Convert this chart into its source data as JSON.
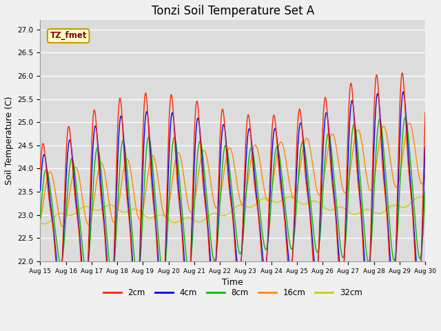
{
  "title": "Tonzi Soil Temperature Set A",
  "xlabel": "Time",
  "ylabel": "Soil Temperature (C)",
  "ylim": [
    22.0,
    27.2
  ],
  "annotation": "TZ_fmet",
  "x_tick_labels": [
    "Aug 15",
    "Aug 16",
    "Aug 17",
    "Aug 18",
    "Aug 19",
    "Aug 20",
    "Aug 21",
    "Aug 22",
    "Aug 23",
    "Aug 24",
    "Aug 25",
    "Aug 26",
    "Aug 27",
    "Aug 28",
    "Aug 29",
    "Aug 30"
  ],
  "colors": {
    "2cm": "#ff2200",
    "4cm": "#0000ee",
    "8cm": "#00bb00",
    "16cm": "#ff8800",
    "32cm": "#cccc00"
  },
  "yticks": [
    22.0,
    22.5,
    23.0,
    23.5,
    24.0,
    24.5,
    25.0,
    25.5,
    26.0,
    26.5,
    27.0
  ],
  "n_days": 15,
  "n_per_day": 48
}
